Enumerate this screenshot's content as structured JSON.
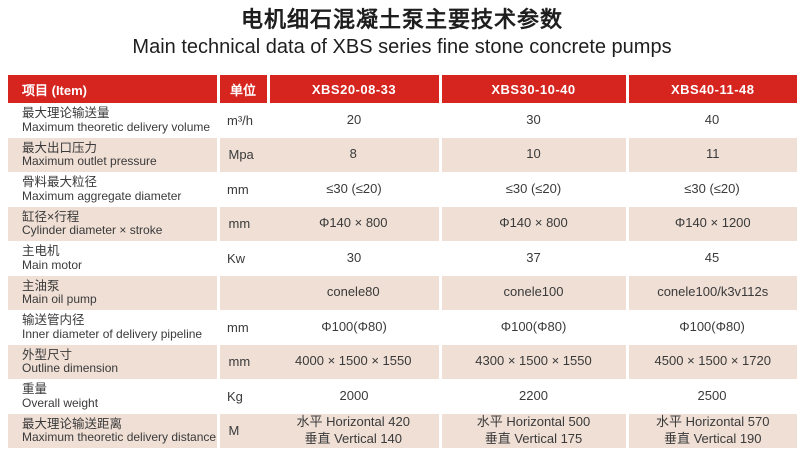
{
  "page": {
    "title_zh": "电机细石混凝土泵主要技术参数",
    "title_en": "Main technical data of XBS series fine stone concrete pumps"
  },
  "colors": {
    "header_bg": "#d6251e",
    "alt_row_bg": "#efdfd5",
    "header_text": "#ffffff",
    "body_text": "#3a3a3a",
    "title_text": "#1e1e1e"
  },
  "table": {
    "header": {
      "item": "项目  (Item)",
      "unit": "单位",
      "models": [
        "XBS20-08-33",
        "XBS30-10-40",
        "XBS40-11-48"
      ]
    },
    "rows": [
      {
        "label_zh": "最大理论输送量",
        "label_en": "Maximum theoretic delivery volume",
        "unit": "m³/h",
        "values": [
          "20",
          "30",
          "40"
        ]
      },
      {
        "label_zh": "最大出口压力",
        "label_en": "Maximum outlet pressure",
        "unit": "Mpa",
        "values": [
          "8",
          "10",
          "11"
        ]
      },
      {
        "label_zh": "骨料最大粒径",
        "label_en": "Maximum aggregate diameter",
        "unit": "mm",
        "values": [
          "≤30 (≤20)",
          "≤30 (≤20)",
          "≤30 (≤20)"
        ]
      },
      {
        "label_zh": "缸径×行程",
        "label_en": "Cylinder diameter × stroke",
        "unit": "mm",
        "values": [
          "Φ140 × 800",
          "Φ140 × 800",
          "Φ140 × 1200"
        ]
      },
      {
        "label_zh": "主电机",
        "label_en": "Main motor",
        "unit": "Kw",
        "values": [
          "30",
          "37",
          "45"
        ]
      },
      {
        "label_zh": "主油泵",
        "label_en": "Main oil pump",
        "unit": "",
        "values": [
          "conele80",
          "conele100",
          "conele100/k3v112s"
        ]
      },
      {
        "label_zh": "输送管内径",
        "label_en": "Inner diameter of delivery pipeline",
        "unit": "mm",
        "values": [
          "Φ100(Φ80)",
          "Φ100(Φ80)",
          "Φ100(Φ80)"
        ]
      },
      {
        "label_zh": "外型尺寸",
        "label_en": "Outline dimension",
        "unit": "mm",
        "values": [
          "4000 × 1500 × 1550",
          "4300 × 1500 × 1550",
          "4500 × 1500 × 1720"
        ]
      },
      {
        "label_zh": "重量",
        "label_en": "Overall weight",
        "unit": "Kg",
        "values": [
          "2000",
          "2200",
          "2500"
        ]
      },
      {
        "label_zh": "最大理论输送距离",
        "label_en": "Maximum theoretic delivery distance",
        "unit": "M",
        "values": [
          "水平 Horizontal 420\n垂直 Vertical 140",
          "水平 Horizontal 500\n垂直 Vertical 175",
          "水平 Horizontal 570\n垂直 Vertical 190"
        ]
      }
    ]
  }
}
